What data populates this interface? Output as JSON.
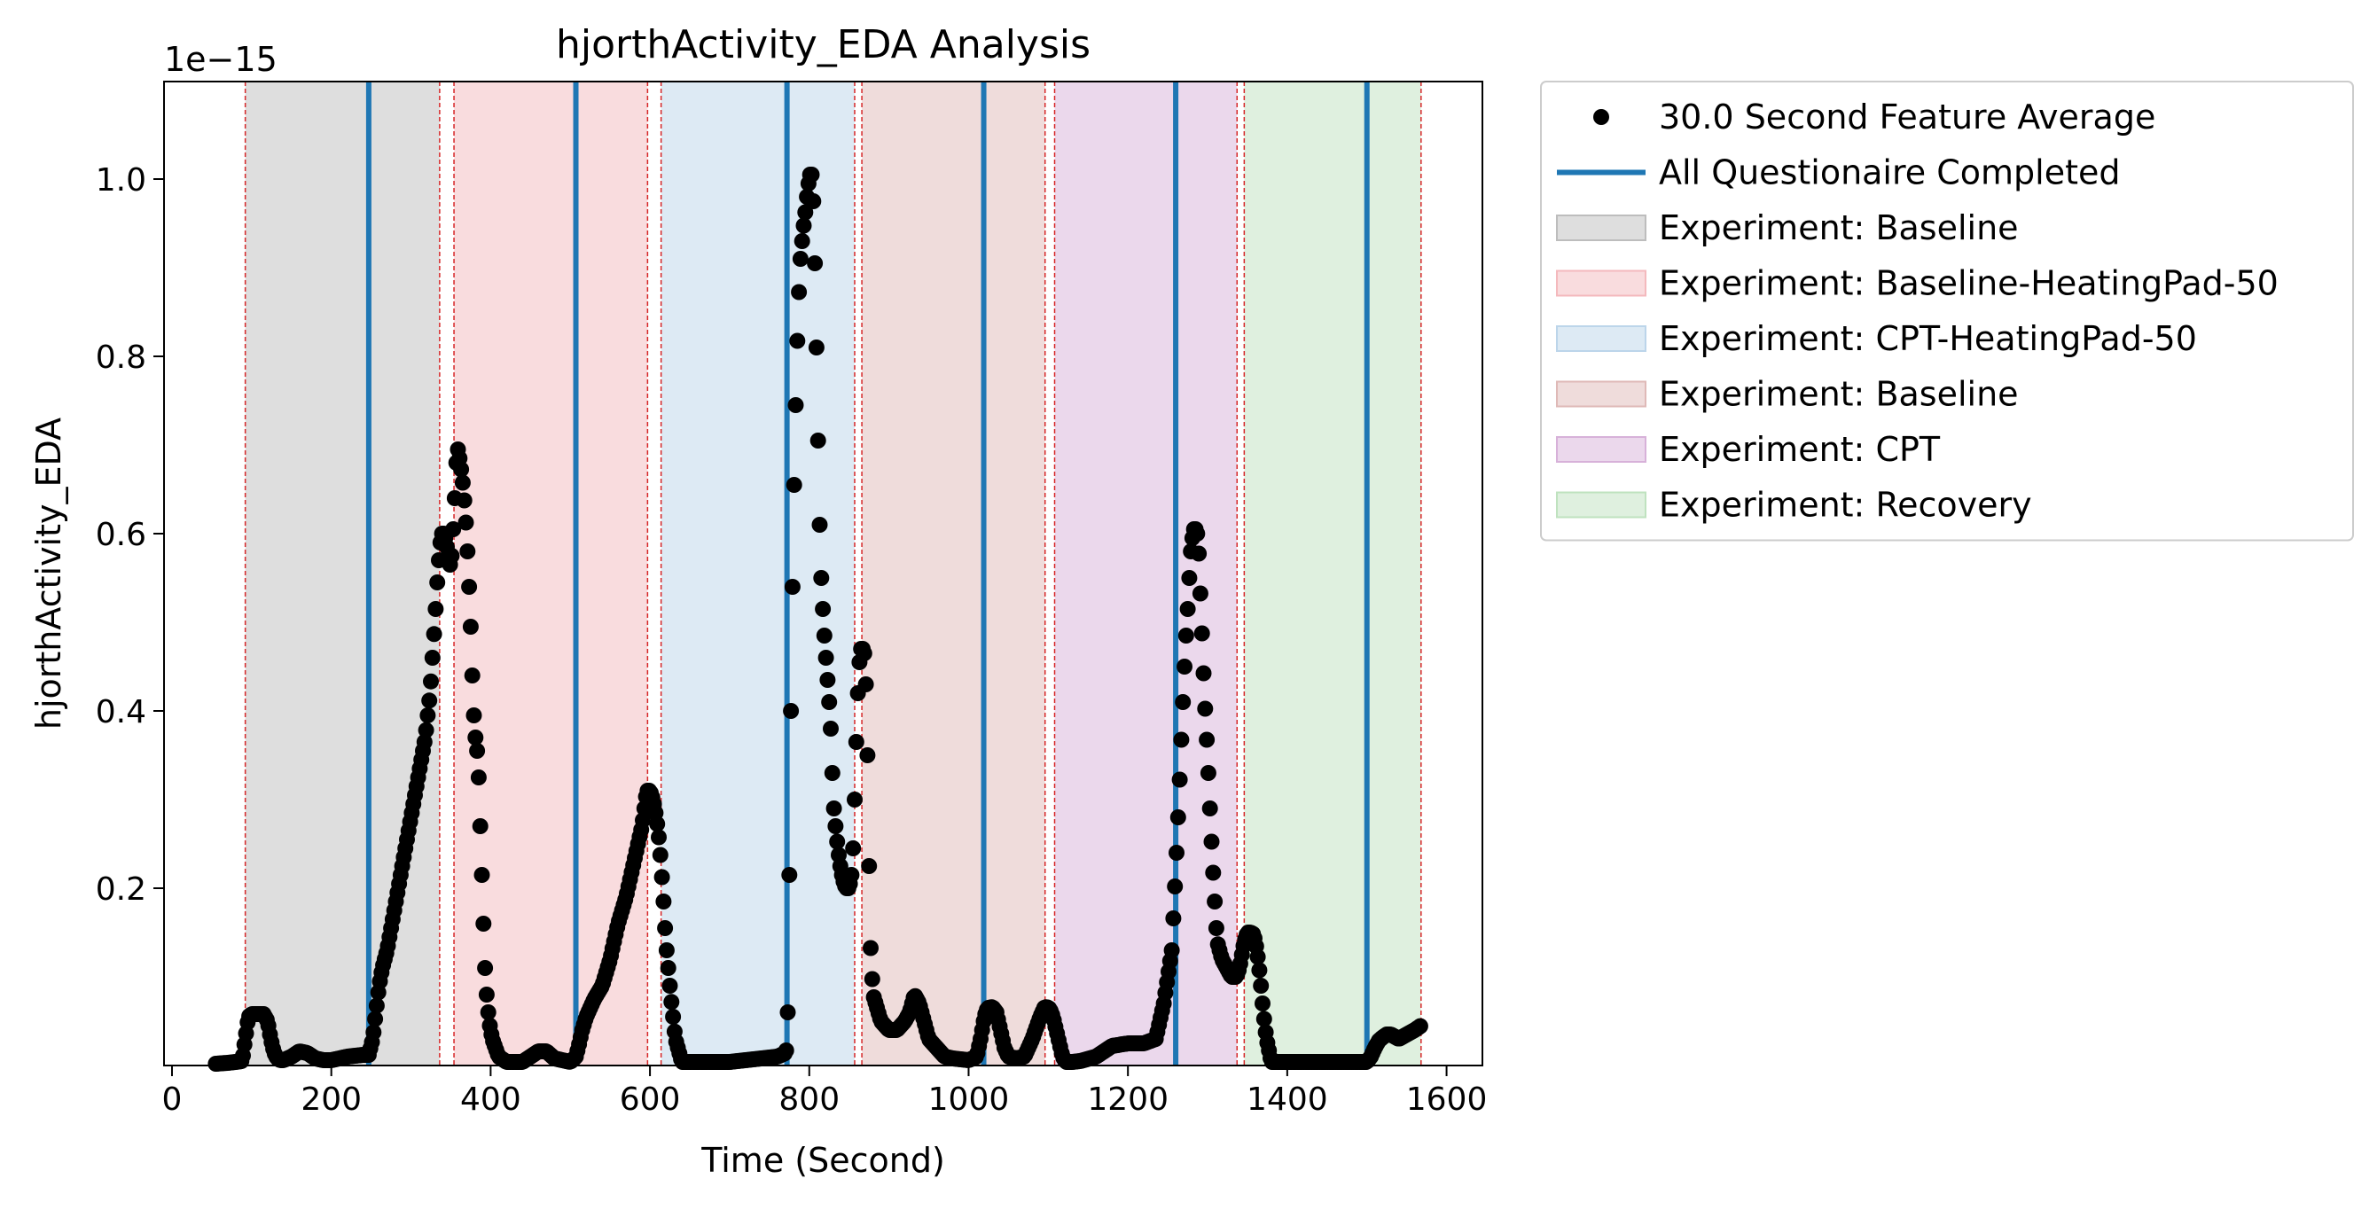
{
  "chart_data": {
    "type": "scatter",
    "title": "hjorthActivity_EDA Analysis",
    "xlabel": "Time (Second)",
    "ylabel": "hjorthActivity_EDA",
    "y_offset_label": "1e−15",
    "xlim": [
      -10,
      1645
    ],
    "ylim": [
      0.0,
      1.11
    ],
    "x_ticks": [
      0,
      200,
      400,
      600,
      800,
      1000,
      1200,
      1400,
      1600
    ],
    "x_tick_labels": [
      "0",
      "200",
      "400",
      "600",
      "800",
      "1000",
      "1200",
      "1400",
      "1600"
    ],
    "y_ticks": [
      0.2,
      0.4,
      0.6,
      0.8,
      1.0
    ],
    "y_tick_labels": [
      "0.2",
      "0.4",
      "0.6",
      "0.8",
      "1.0"
    ],
    "grid": false,
    "legend_position": "outside-right-top",
    "phases": [
      {
        "label": "Experiment: Baseline",
        "start": 92,
        "end": 336,
        "color": "#bdbdbd"
      },
      {
        "label": "Experiment: Baseline-HeatingPad-50",
        "start": 354,
        "end": 597,
        "color": "#f4b9bd"
      },
      {
        "label": "Experiment: CPT-HeatingPad-50",
        "start": 614,
        "end": 857,
        "color": "#bcd5ea"
      },
      {
        "label": "Experiment: Baseline",
        "start": 866,
        "end": 1096,
        "color": "#dfb9b7"
      },
      {
        "label": "Experiment: CPT",
        "start": 1108,
        "end": 1337,
        "color": "#d7b1d9"
      },
      {
        "label": "Experiment: Recovery",
        "start": 1346,
        "end": 1568,
        "color": "#bfe2bf"
      }
    ],
    "phase_alpha": 0.5,
    "phase_boundary_color": "#d62728",
    "questionnaire": {
      "label": "All Questionaire Completed",
      "color": "#1f77b4",
      "x": [
        247,
        507,
        772,
        1019,
        1260,
        1500
      ]
    },
    "series": [
      {
        "name": "30.0 Second Feature Average",
        "color": "#000000",
        "step": 2,
        "x": [
          55,
          70,
          80,
          88,
          92,
          96,
          100,
          105,
          110,
          115,
          120,
          124,
          128,
          132,
          136,
          140,
          150,
          160,
          170,
          180,
          190,
          200,
          220,
          240,
          247,
          252,
          256,
          260,
          264,
          270,
          276,
          282,
          288,
          294,
          300,
          306,
          312,
          318,
          324,
          330,
          334,
          338,
          342,
          346,
          350,
          354,
          358,
          362,
          366,
          370,
          374,
          376,
          378,
          380,
          382,
          384,
          386,
          388,
          390,
          392,
          394,
          398,
          402,
          406,
          410,
          420,
          440,
          460,
          470,
          480,
          500,
          505,
          507,
          510,
          515,
          520,
          525,
          530,
          540,
          550,
          555,
          560,
          570,
          580,
          590,
          596,
          600,
          604,
          608,
          612,
          616,
          620,
          626,
          632,
          640,
          660,
          680,
          700,
          720,
          740,
          760,
          770,
          772,
          774,
          776,
          778,
          780,
          784,
          788,
          792,
          796,
          798,
          800,
          802,
          804,
          806,
          808,
          810,
          812,
          814,
          816,
          818,
          820,
          822,
          824,
          826,
          828,
          830,
          834,
          838,
          842,
          846,
          850,
          854,
          856,
          858,
          860,
          862,
          864,
          868,
          870,
          872,
          874,
          876,
          880,
          890,
          900,
          910,
          920,
          926,
          932,
          938,
          944,
          950,
          960,
          970,
          980,
          1000,
          1010,
          1015,
          1019,
          1022,
          1025,
          1030,
          1035,
          1040,
          1045,
          1050,
          1060,
          1070,
          1080,
          1090,
          1095,
          1098,
          1102,
          1106,
          1110,
          1114,
          1118,
          1122,
          1126,
          1130,
          1140,
          1160,
          1180,
          1200,
          1220,
          1235,
          1245,
          1255,
          1260,
          1264,
          1268,
          1272,
          1276,
          1278,
          1280,
          1282,
          1284,
          1286,
          1288,
          1292,
          1296,
          1300,
          1304,
          1308,
          1312,
          1318,
          1324,
          1330,
          1336,
          1340,
          1344,
          1346,
          1350,
          1354,
          1358,
          1362,
          1366,
          1370,
          1374,
          1380,
          1400,
          1450,
          1490,
          1500,
          1505,
          1510,
          1515,
          1520,
          1525,
          1530,
          1540,
          1550,
          1560,
          1568
        ],
        "y": [
          0.002,
          0.003,
          0.004,
          0.005,
          0.03,
          0.055,
          0.058,
          0.058,
          0.058,
          0.058,
          0.05,
          0.03,
          0.015,
          0.008,
          0.006,
          0.006,
          0.01,
          0.016,
          0.014,
          0.008,
          0.006,
          0.006,
          0.01,
          0.012,
          0.012,
          0.03,
          0.06,
          0.09,
          0.11,
          0.13,
          0.16,
          0.19,
          0.22,
          0.25,
          0.28,
          0.31,
          0.34,
          0.37,
          0.42,
          0.5,
          0.56,
          0.6,
          0.6,
          0.58,
          0.56,
          0.62,
          0.7,
          0.68,
          0.65,
          0.6,
          0.52,
          0.47,
          0.41,
          0.38,
          0.36,
          0.35,
          0.3,
          0.24,
          0.19,
          0.13,
          0.09,
          0.05,
          0.03,
          0.02,
          0.01,
          0.004,
          0.004,
          0.016,
          0.016,
          0.008,
          0.004,
          0.008,
          0.01,
          0.02,
          0.04,
          0.055,
          0.065,
          0.075,
          0.09,
          0.12,
          0.14,
          0.16,
          0.19,
          0.23,
          0.27,
          0.31,
          0.31,
          0.3,
          0.28,
          0.25,
          0.2,
          0.14,
          0.08,
          0.03,
          0.004,
          0.004,
          0.004,
          0.004,
          0.006,
          0.008,
          0.01,
          0.014,
          0.02,
          0.1,
          0.33,
          0.47,
          0.61,
          0.79,
          0.9,
          0.94,
          0.97,
          0.99,
          1.0,
          1.01,
          1.0,
          0.95,
          0.86,
          0.76,
          0.65,
          0.57,
          0.53,
          0.5,
          0.47,
          0.45,
          0.42,
          0.4,
          0.36,
          0.3,
          0.26,
          0.23,
          0.21,
          0.2,
          0.2,
          0.22,
          0.27,
          0.33,
          0.4,
          0.44,
          0.47,
          0.47,
          0.46,
          0.4,
          0.3,
          0.15,
          0.08,
          0.05,
          0.04,
          0.04,
          0.05,
          0.06,
          0.08,
          0.07,
          0.05,
          0.03,
          0.02,
          0.01,
          0.008,
          0.006,
          0.01,
          0.03,
          0.05,
          0.062,
          0.065,
          0.066,
          0.06,
          0.04,
          0.02,
          0.01,
          0.008,
          0.01,
          0.03,
          0.055,
          0.065,
          0.066,
          0.064,
          0.055,
          0.04,
          0.025,
          0.01,
          0.004,
          0.004,
          0.004,
          0.005,
          0.01,
          0.022,
          0.025,
          0.025,
          0.03,
          0.07,
          0.13,
          0.22,
          0.3,
          0.39,
          0.47,
          0.53,
          0.57,
          0.59,
          0.6,
          0.61,
          0.6,
          0.6,
          0.51,
          0.42,
          0.35,
          0.27,
          0.2,
          0.14,
          0.12,
          0.11,
          0.1,
          0.1,
          0.11,
          0.13,
          0.14,
          0.15,
          0.15,
          0.148,
          0.13,
          0.1,
          0.06,
          0.03,
          0.004,
          0.004,
          0.004,
          0.004,
          0.004,
          0.01,
          0.02,
          0.028,
          0.032,
          0.035,
          0.035,
          0.03,
          0.035,
          0.04,
          0.045
        ]
      }
    ]
  }
}
